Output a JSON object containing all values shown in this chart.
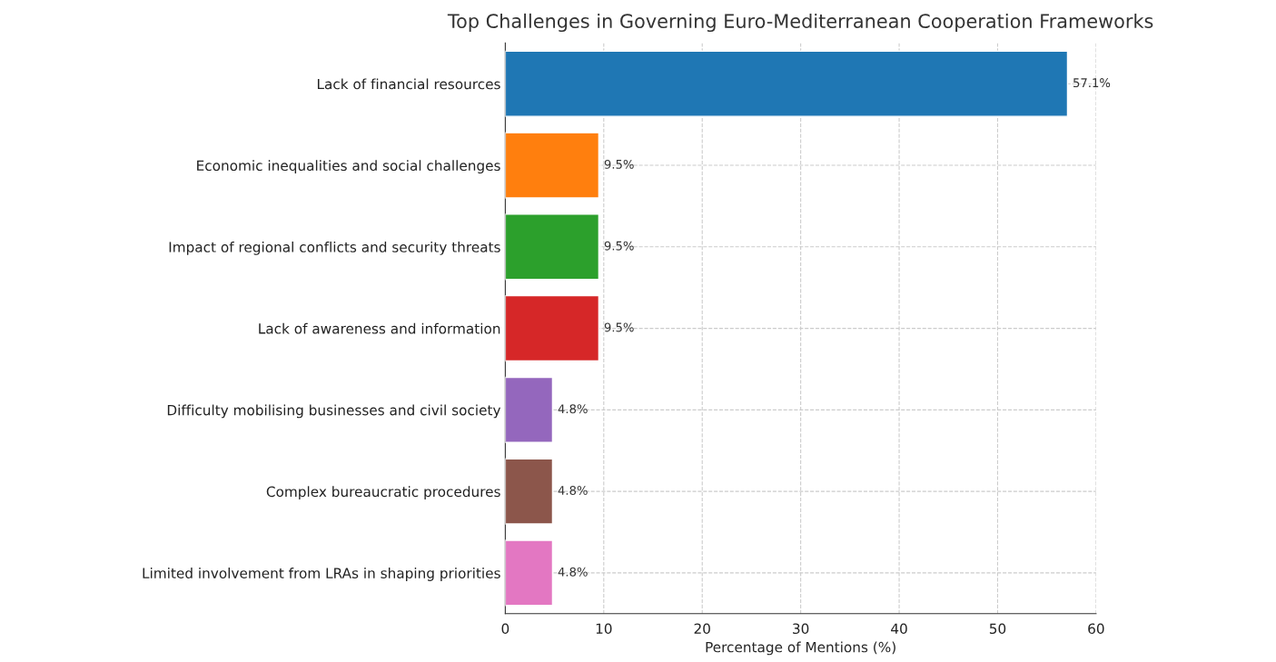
{
  "chart_data": {
    "type": "bar",
    "orientation": "horizontal",
    "title": "Top Challenges in Governing Euro-Mediterranean Cooperation Frameworks",
    "xlabel": "Percentage of Mentions (%)",
    "categories": [
      "Lack of financial resources",
      "Economic inequalities and social challenges",
      "Impact of regional conflicts and security threats",
      "Lack of awareness and information",
      "Difficulty mobilising businesses and civil society",
      "Complex bureaucratic procedures",
      "Limited involvement from LRAs in shaping priorities"
    ],
    "values": [
      57.1,
      9.5,
      9.5,
      9.5,
      4.8,
      4.8,
      4.8
    ],
    "colors": [
      "#1f77b4",
      "#ff7f0e",
      "#2ca02c",
      "#d62728",
      "#9467bd",
      "#8c564b",
      "#e377c2"
    ],
    "value_labels": [
      "57.1%",
      "9.5%",
      "9.5%",
      "9.5%",
      "4.8%",
      "4.8%",
      "4.8%"
    ],
    "xlim": [
      0,
      60
    ],
    "xticks": [
      0,
      10,
      20,
      30,
      40,
      50,
      60
    ],
    "grid": true
  }
}
